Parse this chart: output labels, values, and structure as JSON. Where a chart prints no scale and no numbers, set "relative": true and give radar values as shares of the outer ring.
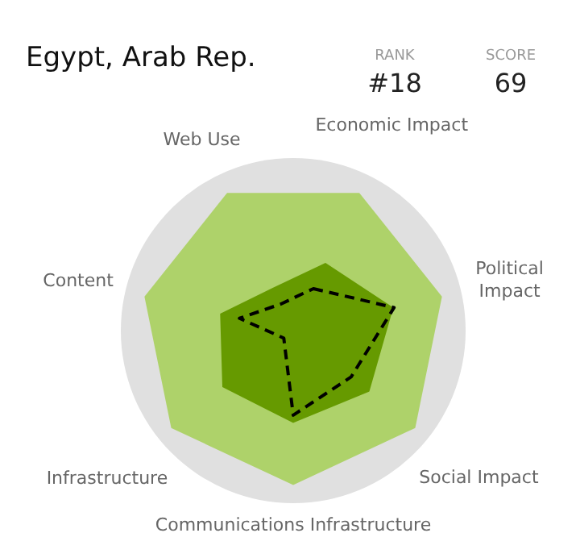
{
  "chart_data": {
    "type": "radar",
    "title": "Egypt, Arab Rep.",
    "relative": true,
    "marker": "none",
    "legend": false,
    "categories": [
      "Economic Impact",
      "Political Impact",
      "Social Impact",
      "Communications Infrastructure",
      "Infrastructure",
      "Content",
      "Web Use"
    ],
    "series": [
      {
        "color": "#000000",
        "line_style": "dashed",
        "values": [
          0.27,
          0.6,
          0.43,
          0.49,
          0.07,
          0.32,
          0.17
        ]
      },
      {
        "color": "#669a00",
        "values": [
          0.43,
          0.59,
          0.56,
          0.53,
          0.52,
          0.43,
          0.27
        ]
      },
      {
        "color": "#aed26a",
        "values": [
          0.88,
          0.88,
          0.9,
          0.89,
          0.9,
          0.88,
          0.88
        ]
      }
    ],
    "annotations": [
      "RANK",
      "#18",
      "SCORE",
      "69"
    ]
  }
}
